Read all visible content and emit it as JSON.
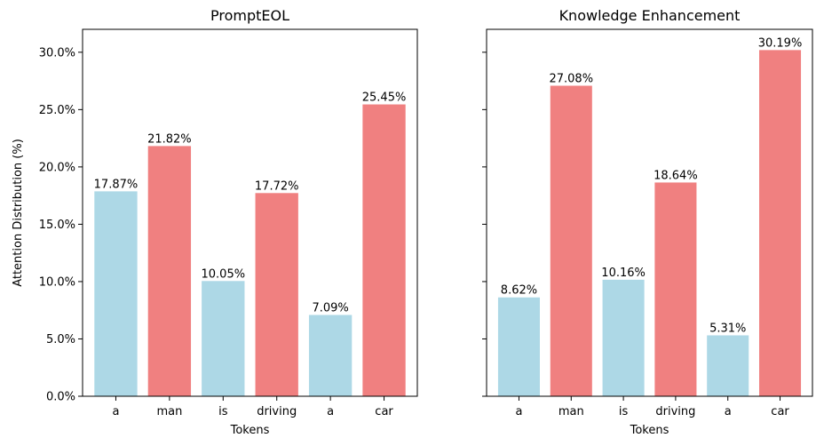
{
  "chart_data": [
    {
      "type": "bar",
      "title": "PromptEOL",
      "xlabel": "Tokens",
      "ylabel": "Attention Distribution (%)",
      "categories": [
        "a",
        "man",
        "is",
        "driving",
        "a",
        "car"
      ],
      "values": [
        17.87,
        21.82,
        10.05,
        17.72,
        7.09,
        25.45
      ],
      "value_labels": [
        "17.87%",
        "21.82%",
        "10.05%",
        "17.72%",
        "7.09%",
        "25.45%"
      ],
      "bar_colors": [
        "#add8e6",
        "#f08080",
        "#add8e6",
        "#f08080",
        "#add8e6",
        "#f08080"
      ],
      "ylim": [
        0,
        32
      ],
      "yticks": [
        0,
        5,
        10,
        15,
        20,
        25,
        30
      ],
      "ytick_labels": [
        "0.0%",
        "5.0%",
        "10.0%",
        "15.0%",
        "20.0%",
        "25.0%",
        "30.0%"
      ],
      "grid": false
    },
    {
      "type": "bar",
      "title": "Knowledge Enhancement",
      "xlabel": "Tokens",
      "ylabel": "",
      "categories": [
        "a",
        "man",
        "is",
        "driving",
        "a",
        "car"
      ],
      "values": [
        8.62,
        27.08,
        10.16,
        18.64,
        5.31,
        30.19
      ],
      "value_labels": [
        "8.62%",
        "27.08%",
        "10.16%",
        "18.64%",
        "5.31%",
        "30.19%"
      ],
      "bar_colors": [
        "#add8e6",
        "#f08080",
        "#add8e6",
        "#f08080",
        "#add8e6",
        "#f08080"
      ],
      "ylim": [
        0,
        32
      ],
      "yticks": [
        0,
        5,
        10,
        15,
        20,
        25,
        30
      ],
      "ytick_labels": [
        "",
        "",
        "",
        "",
        "",
        "",
        ""
      ],
      "grid": false
    }
  ]
}
